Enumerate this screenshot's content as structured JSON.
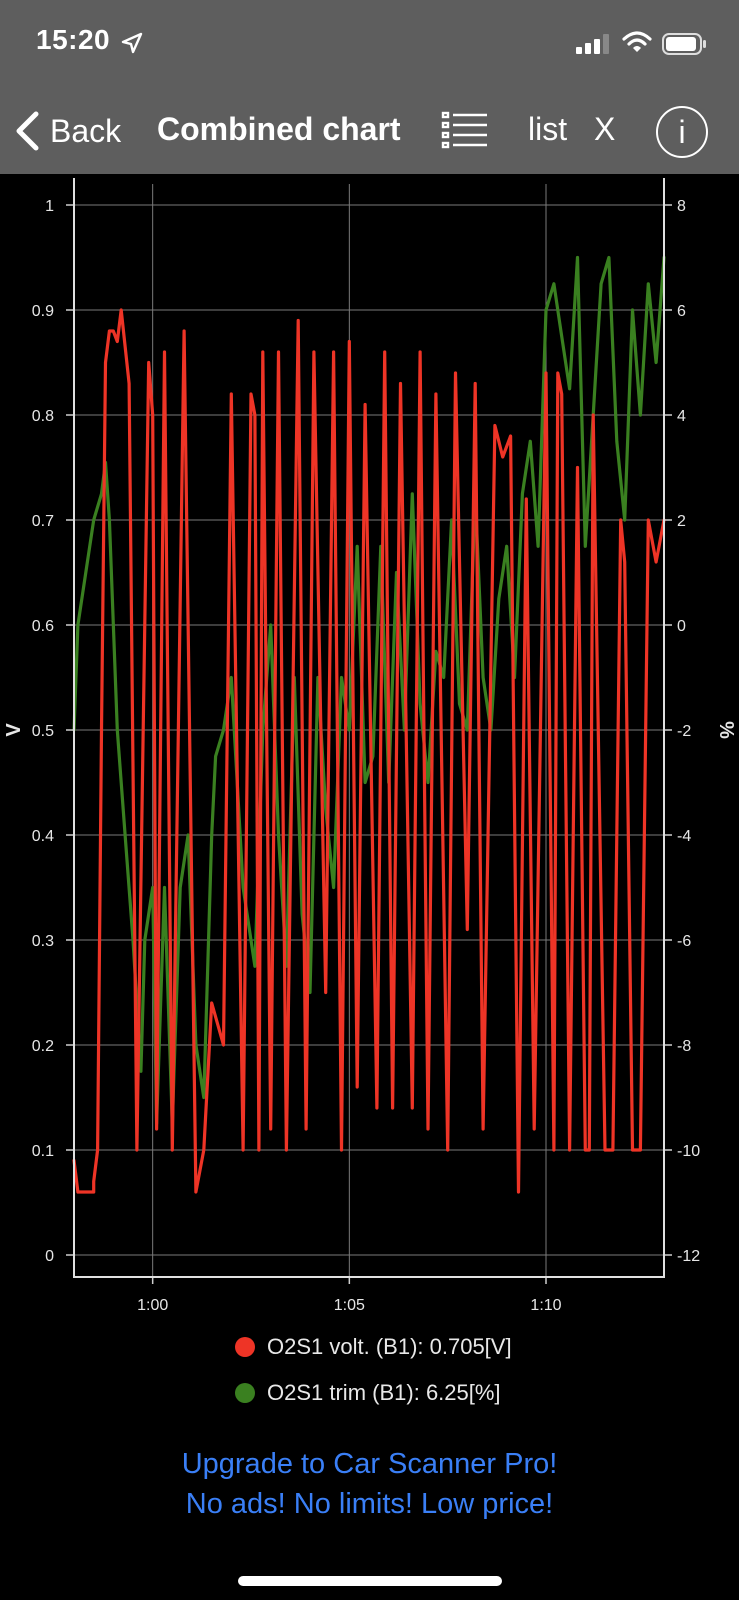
{
  "status_bar": {
    "time": "15:20"
  },
  "nav": {
    "back_label": "Back",
    "title": "Combined chart",
    "list_label": "list",
    "close_label": "X",
    "info_label": "i"
  },
  "colors": {
    "o2_volt": "#ee3426",
    "o2_trim": "#3a8020",
    "promo": "#3a7ff6",
    "nav_bg": "#5e5e5e"
  },
  "icons": {
    "back": "chevron-left-icon",
    "list": "list-icon",
    "info": "info-icon",
    "location": "location-arrow-icon",
    "signal": "cellular-signal-icon",
    "wifi": "wifi-icon",
    "battery": "battery-icon"
  },
  "chart_data": {
    "type": "line",
    "x_start": "0:58",
    "x_end": "1:13",
    "x_ticks": [
      "1:00",
      "1:05",
      "1:10"
    ],
    "x_tick_values": [
      60,
      65,
      70
    ],
    "x_range_seconds": [
      58,
      73
    ],
    "left_axis": {
      "label": "V",
      "range": [
        -0.02,
        1.02
      ],
      "ticks": [
        "0",
        "0.1",
        "0.2",
        "0.3",
        "0.4",
        "0.5",
        "0.6",
        "0.7",
        "0.8",
        "0.9",
        "1"
      ]
    },
    "right_axis": {
      "label": "%",
      "range": [
        -12.4,
        8.4
      ],
      "ticks": [
        "-12",
        "-10",
        "-8",
        "-6",
        "-4",
        "-2",
        "0",
        "2",
        "4",
        "6",
        "8"
      ]
    },
    "grid": true,
    "series": [
      {
        "name": "O2S1 volt. (B1)",
        "axis": "left",
        "current": "0.705[V]",
        "x": [
          58.0,
          58.1,
          58.5,
          58.5,
          58.6,
          58.7,
          58.8,
          58.9,
          59.0,
          59.1,
          59.2,
          59.4,
          59.6,
          59.9,
          60.0,
          60.1,
          60.3,
          60.5,
          60.8,
          61.1,
          61.3,
          61.5,
          61.8,
          62.0,
          62.3,
          62.5,
          62.6,
          62.7,
          62.8,
          63.0,
          63.2,
          63.4,
          63.7,
          63.9,
          64.1,
          64.4,
          64.6,
          64.8,
          65.0,
          65.2,
          65.4,
          65.7,
          65.9,
          66.1,
          66.3,
          66.6,
          66.8,
          67.0,
          67.2,
          67.5,
          67.7,
          68.0,
          68.2,
          68.4,
          68.7,
          68.9,
          69.1,
          69.3,
          69.5,
          69.7,
          70.0,
          70.2,
          70.3,
          70.4,
          70.6,
          70.8,
          71.0,
          71.1,
          71.2,
          71.5,
          71.7,
          71.9,
          72.0,
          72.2,
          72.4,
          72.6,
          72.8,
          73.0
        ],
        "values": [
          0.09,
          0.06,
          0.06,
          0.07,
          0.1,
          0.5,
          0.85,
          0.88,
          0.88,
          0.87,
          0.9,
          0.83,
          0.1,
          0.85,
          0.8,
          0.12,
          0.86,
          0.1,
          0.88,
          0.06,
          0.1,
          0.24,
          0.2,
          0.82,
          0.1,
          0.82,
          0.8,
          0.1,
          0.86,
          0.12,
          0.86,
          0.1,
          0.89,
          0.12,
          0.86,
          0.25,
          0.86,
          0.1,
          0.87,
          0.16,
          0.81,
          0.14,
          0.86,
          0.14,
          0.83,
          0.14,
          0.86,
          0.12,
          0.82,
          0.1,
          0.84,
          0.31,
          0.83,
          0.12,
          0.79,
          0.76,
          0.78,
          0.06,
          0.72,
          0.12,
          0.84,
          0.1,
          0.84,
          0.82,
          0.1,
          0.75,
          0.1,
          0.1,
          0.8,
          0.1,
          0.1,
          0.7,
          0.66,
          0.1,
          0.1,
          0.7,
          0.66,
          0.7
        ]
      },
      {
        "name": "O2S1 trim (B1)",
        "axis": "right",
        "current": "6.25[%]",
        "x": [
          58.0,
          58.1,
          58.3,
          58.5,
          58.7,
          58.8,
          58.9,
          59.1,
          59.3,
          59.5,
          59.7,
          59.8,
          60.0,
          60.1,
          60.3,
          60.5,
          60.7,
          60.9,
          61.1,
          61.3,
          61.5,
          61.6,
          61.8,
          62.0,
          62.3,
          62.6,
          62.8,
          63.0,
          63.2,
          63.4,
          63.6,
          63.8,
          64.0,
          64.2,
          64.4,
          64.6,
          64.8,
          65.0,
          65.2,
          65.4,
          65.6,
          65.8,
          66.0,
          66.2,
          66.4,
          66.6,
          66.8,
          67.0,
          67.2,
          67.4,
          67.6,
          67.8,
          68.0,
          68.2,
          68.4,
          68.6,
          68.8,
          69.0,
          69.2,
          69.4,
          69.6,
          69.8,
          70.0,
          70.2,
          70.4,
          70.6,
          70.8,
          71.0,
          71.2,
          71.4,
          71.6,
          71.8,
          72.0,
          72.2,
          72.4,
          72.6,
          72.8,
          73.0
        ],
        "values": [
          -2.0,
          0.0,
          1.0,
          2.0,
          2.5,
          3.1,
          2.0,
          -2.0,
          -4.0,
          -6.0,
          -8.5,
          -6.0,
          -5.0,
          -9.5,
          -5.0,
          -9.5,
          -5.0,
          -4.0,
          -8.0,
          -9.0,
          -4.0,
          -2.5,
          -2.0,
          -1.0,
          -5.0,
          -6.5,
          -2.0,
          0.0,
          -4.0,
          -6.5,
          -1.0,
          -5.5,
          -7.0,
          -1.0,
          -3.5,
          -5.0,
          -1.0,
          -2.0,
          1.5,
          -3.0,
          -2.5,
          1.5,
          -3.0,
          1.0,
          -2.0,
          2.5,
          -1.5,
          -3.0,
          -0.5,
          -1.0,
          2.0,
          -1.5,
          -2.0,
          2.5,
          -1.0,
          -2.0,
          0.5,
          1.5,
          -1.0,
          2.5,
          3.5,
          1.5,
          6.0,
          6.5,
          5.5,
          4.5,
          7.0,
          1.5,
          4.0,
          6.5,
          7.0,
          3.5,
          2.0,
          6.0,
          4.0,
          6.5,
          5.0,
          7.0
        ]
      }
    ]
  },
  "promo": {
    "line1": "Upgrade to Car Scanner Pro!",
    "line2": "No ads! No limits! Low price!"
  }
}
